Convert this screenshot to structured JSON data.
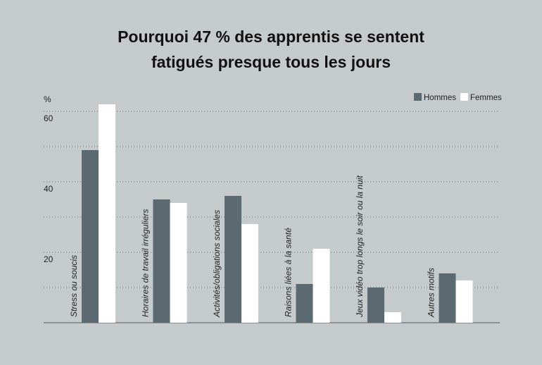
{
  "chart_data": {
    "type": "bar",
    "title": [
      "Pourquoi 47 % des apprentis se sentent",
      "fatigués presque tous les jours"
    ],
    "ylabel": "%",
    "ylim": [
      0,
      60
    ],
    "yticks": [
      20,
      40,
      60
    ],
    "grid": true,
    "legend_position": "top-right",
    "categories": [
      "Stress ou soucis",
      "Horaires de travail irréguliers",
      "Activités/obligations sociales",
      "Raisons liées à la santé",
      "Jeux vidéo trop longs le soir ou la nuit",
      "Autres motifs"
    ],
    "series": [
      {
        "name": "Hommes",
        "color": "#5a6a70",
        "values": [
          49,
          35,
          36,
          11,
          10,
          14
        ]
      },
      {
        "name": "Femmes",
        "color": "#ffffff",
        "values": [
          62,
          34,
          28,
          21,
          3,
          12
        ]
      }
    ]
  }
}
